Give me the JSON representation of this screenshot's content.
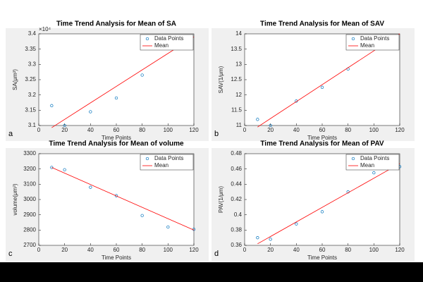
{
  "chart_data": [
    {
      "type": "scatter",
      "title": "Time Trend Analysis for Mean of SA",
      "panel_label": "a",
      "xlabel": "Time Points",
      "ylabel": "SA(μm²)",
      "y_exponent_label": "×10⁴",
      "xlim": [
        0,
        120
      ],
      "xticks": [
        0,
        20,
        40,
        60,
        80,
        100,
        120
      ],
      "ylim": [
        3.1,
        3.4
      ],
      "yticks": [
        3.1,
        3.15,
        3.2,
        3.25,
        3.3,
        3.35,
        3.4
      ],
      "legend": "upper right",
      "series": [
        {
          "name": "Data Points",
          "kind": "marker",
          "color": "#0072bd",
          "x": [
            10,
            20,
            40,
            60,
            80
          ],
          "values": [
            3.165,
            3.1,
            3.145,
            3.19,
            3.265
          ]
        },
        {
          "name": "Mean",
          "kind": "line",
          "color": "#ff0000",
          "x": [
            10,
            120
          ],
          "values": [
            3.093,
            3.39
          ]
        }
      ]
    },
    {
      "type": "scatter",
      "title": "Time Trend Analysis for Mean of SAV",
      "panel_label": "b",
      "xlabel": "Time Points",
      "ylabel": "SAV(1/μm)",
      "xlim": [
        0,
        120
      ],
      "xticks": [
        0,
        20,
        40,
        60,
        80,
        100,
        120
      ],
      "ylim": [
        11,
        14
      ],
      "yticks": [
        11,
        11.5,
        12,
        12.5,
        13,
        13.5,
        14
      ],
      "legend": "upper right",
      "series": [
        {
          "name": "Data Points",
          "kind": "marker",
          "color": "#0072bd",
          "x": [
            10,
            20,
            40,
            60,
            80
          ],
          "values": [
            11.2,
            11.0,
            11.8,
            12.25,
            12.85
          ]
        },
        {
          "name": "Mean",
          "kind": "line",
          "color": "#ff0000",
          "x": [
            10,
            120
          ],
          "values": [
            10.95,
            14.0
          ]
        }
      ]
    },
    {
      "type": "scatter",
      "title": "Time Trend Analysis for Mean of volume",
      "panel_label": "c",
      "xlabel": "Time Points",
      "ylabel": "volume(μm³)",
      "xlim": [
        0,
        120
      ],
      "xticks": [
        0,
        20,
        40,
        60,
        80,
        100,
        120
      ],
      "ylim": [
        2700,
        3300
      ],
      "yticks": [
        2700,
        2800,
        2900,
        3000,
        3100,
        3200,
        3300
      ],
      "legend": "upper right",
      "series": [
        {
          "name": "Data Points",
          "kind": "marker",
          "color": "#0072bd",
          "x": [
            10,
            20,
            40,
            60,
            80,
            100,
            120
          ],
          "values": [
            3210,
            3195,
            3080,
            3025,
            2895,
            2820,
            2805
          ]
        },
        {
          "name": "Mean",
          "kind": "line",
          "color": "#ff0000",
          "x": [
            10,
            120
          ],
          "values": [
            3210,
            2800
          ]
        }
      ]
    },
    {
      "type": "scatter",
      "title": "Time Trend Analysis for Mean of PAV",
      "panel_label": "d",
      "xlabel": "Time Points",
      "ylabel": "PAV(1/μm)",
      "xlim": [
        0,
        120
      ],
      "xticks": [
        0,
        20,
        40,
        60,
        80,
        100,
        120
      ],
      "ylim": [
        0.36,
        0.48
      ],
      "yticks": [
        0.36,
        0.38,
        0.4,
        0.42,
        0.44,
        0.46,
        0.48
      ],
      "legend": "upper right",
      "series": [
        {
          "name": "Data Points",
          "kind": "marker",
          "color": "#0072bd",
          "x": [
            10,
            20,
            40,
            60,
            80,
            100,
            120
          ],
          "values": [
            0.37,
            0.368,
            0.388,
            0.404,
            0.43,
            0.455,
            0.463
          ]
        },
        {
          "name": "Mean",
          "kind": "line",
          "color": "#ff0000",
          "x": [
            10,
            120
          ],
          "values": [
            0.362,
            0.467
          ]
        }
      ]
    }
  ]
}
